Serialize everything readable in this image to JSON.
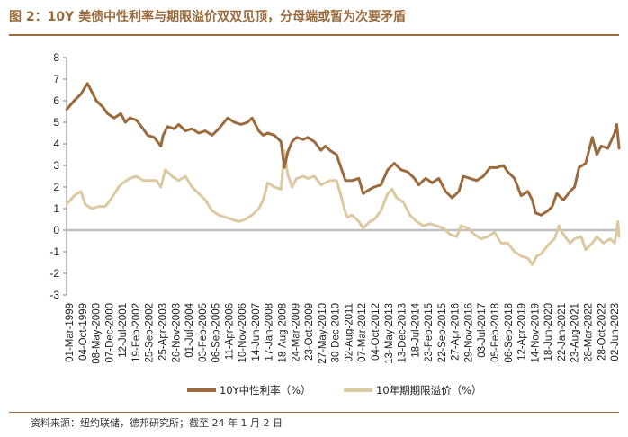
{
  "title": "图 2：10Y 美债中性利率与期限溢价双双见顶，分母端或暂为次要矛盾",
  "source": "资料来源：纽约联储，德邦研究所；截至 24 年 1 月 2 日",
  "colors": {
    "rate": "#9b6b3d",
    "premium": "#dcc9a2",
    "zero": "#bfbfbf"
  },
  "chart_data": {
    "type": "line",
    "title": "10Y 美债中性利率与期限溢价双双见顶，分母端或暂为次要矛盾",
    "ylim": [
      -3,
      8
    ],
    "yticks": [
      "8",
      "7",
      "6",
      "5",
      "4",
      "3",
      "2",
      "1",
      "0",
      "-1",
      "-2",
      "-3"
    ],
    "xlim": [
      1999.16,
      2024.0
    ],
    "xtick_labels": [
      "01-Mar-1999",
      "04-Oct-1999",
      "08-May-2000",
      "07-Dec-2000",
      "12-Jul-2001",
      "19-Feb-2002",
      "25-Sep-2002",
      "25-Apr-2003",
      "26-Nov-2003",
      "01-Jul-2004",
      "03-Feb-2005",
      "06-Sep-2005",
      "11-Apr-2006",
      "10-Nov-2006",
      "14-Jun-2007",
      "17-Jan-2008",
      "18-Aug-2008",
      "24-Mar-2009",
      "23-Oct-2009",
      "27-May-2010",
      "30-Dec-2010",
      "02-Aug-2011",
      "07-Mar-2012",
      "04-Oct-2012",
      "13-May-2013",
      "13-Dec-2013",
      "18-Jul-2014",
      "23-Feb-2015",
      "22-Sep-2015",
      "27-Apr-2016",
      "29-Nov-2016",
      "03-Jul-2017",
      "05-Feb-2018",
      "06-Sep-2018",
      "12-Apr-2019",
      "14-Nov-2019",
      "18-Jun-2020",
      "22-Jan-2021",
      "23-Aug-2021",
      "28-Mar-2022",
      "28-Oct-2022",
      "02-Jun-2023"
    ],
    "legend": [
      "10Y中性利率（%）",
      "10年期期限溢价（%）"
    ],
    "series": [
      {
        "name": "10Y中性利率（%）",
        "x": [
          1999.17,
          1999.5,
          1999.8,
          2000.1,
          2000.3,
          2000.5,
          2000.8,
          2001.0,
          2001.3,
          2001.6,
          2001.8,
          2002.0,
          2002.3,
          2002.6,
          2002.8,
          2003.1,
          2003.4,
          2003.5,
          2003.7,
          2004.0,
          2004.2,
          2004.5,
          2004.8,
          2005.1,
          2005.4,
          2005.7,
          2006.0,
          2006.4,
          2006.7,
          2007.0,
          2007.3,
          2007.5,
          2007.8,
          2008.0,
          2008.2,
          2008.5,
          2008.8,
          2008.95,
          2009.1,
          2009.3,
          2009.5,
          2009.8,
          2010.0,
          2010.3,
          2010.6,
          2010.8,
          2011.0,
          2011.3,
          2011.5,
          2011.7,
          2012.0,
          2012.3,
          2012.5,
          2012.8,
          2013.0,
          2013.3,
          2013.6,
          2013.9,
          2014.2,
          2014.5,
          2014.8,
          2015.0,
          2015.3,
          2015.6,
          2015.9,
          2016.2,
          2016.5,
          2016.8,
          2017.0,
          2017.3,
          2017.6,
          2017.9,
          2018.2,
          2018.5,
          2018.8,
          2019.0,
          2019.3,
          2019.6,
          2019.9,
          2020.1,
          2020.25,
          2020.5,
          2020.8,
          2021.0,
          2021.2,
          2021.5,
          2021.8,
          2022.0,
          2022.2,
          2022.5,
          2022.8,
          2023.0,
          2023.2,
          2023.5,
          2023.8,
          2023.9,
          2024.0
        ],
        "values": [
          5.6,
          6.0,
          6.3,
          6.8,
          6.4,
          6.0,
          5.7,
          5.4,
          5.2,
          5.4,
          5.0,
          5.2,
          5.1,
          4.7,
          4.4,
          4.3,
          3.9,
          4.4,
          4.8,
          4.7,
          4.9,
          4.6,
          4.7,
          4.5,
          4.6,
          4.4,
          4.7,
          5.2,
          5.0,
          4.9,
          5.0,
          5.2,
          4.6,
          4.4,
          4.5,
          4.4,
          4.1,
          2.9,
          3.6,
          4.1,
          4.3,
          4.2,
          4.3,
          4.1,
          3.7,
          3.9,
          3.7,
          3.5,
          2.9,
          2.3,
          2.3,
          2.4,
          1.7,
          1.9,
          2.0,
          2.1,
          2.8,
          3.1,
          2.8,
          2.7,
          2.4,
          2.1,
          2.4,
          2.2,
          2.4,
          1.8,
          1.5,
          1.8,
          2.5,
          2.4,
          2.3,
          2.5,
          2.9,
          2.9,
          3.0,
          2.7,
          2.4,
          1.6,
          1.8,
          1.4,
          0.8,
          0.7,
          0.9,
          1.1,
          1.7,
          1.4,
          1.8,
          2.0,
          2.9,
          3.1,
          4.3,
          3.5,
          3.9,
          3.8,
          4.5,
          4.9,
          3.8
        ]
      },
      {
        "name": "10年期期限溢价（%）",
        "x": [
          1999.17,
          1999.5,
          1999.8,
          2000.0,
          2000.3,
          2000.6,
          2000.9,
          2001.2,
          2001.5,
          2001.7,
          2002.0,
          2002.3,
          2002.6,
          2002.9,
          2003.2,
          2003.4,
          2003.6,
          2003.9,
          2004.2,
          2004.5,
          2004.8,
          2005.1,
          2005.4,
          2005.7,
          2006.0,
          2006.3,
          2006.6,
          2006.9,
          2007.2,
          2007.5,
          2007.8,
          2008.0,
          2008.2,
          2008.5,
          2008.8,
          2008.95,
          2009.1,
          2009.3,
          2009.5,
          2009.8,
          2010.0,
          2010.3,
          2010.6,
          2010.8,
          2011.0,
          2011.3,
          2011.5,
          2011.7,
          2011.8,
          2012.0,
          2012.3,
          2012.5,
          2012.8,
          2013.0,
          2013.3,
          2013.6,
          2013.8,
          2014.0,
          2014.3,
          2014.6,
          2014.9,
          2015.2,
          2015.5,
          2015.8,
          2016.1,
          2016.4,
          2016.7,
          2016.9,
          2017.2,
          2017.5,
          2017.8,
          2018.1,
          2018.4,
          2018.7,
          2019.0,
          2019.3,
          2019.6,
          2019.9,
          2020.1,
          2020.3,
          2020.5,
          2020.8,
          2021.1,
          2021.3,
          2021.5,
          2021.8,
          2022.0,
          2022.3,
          2022.5,
          2022.8,
          2023.0,
          2023.3,
          2023.6,
          2023.8,
          2023.95,
          2024.0
        ],
        "values": [
          1.2,
          1.6,
          1.8,
          1.2,
          1.0,
          1.1,
          1.1,
          1.5,
          2.0,
          2.2,
          2.4,
          2.5,
          2.3,
          2.3,
          2.3,
          2.0,
          2.8,
          2.5,
          2.3,
          2.5,
          2.0,
          1.7,
          1.4,
          0.9,
          0.7,
          0.6,
          0.5,
          0.4,
          0.5,
          0.7,
          1.0,
          1.4,
          2.2,
          2.0,
          1.9,
          3.7,
          2.6,
          2.0,
          2.4,
          2.5,
          2.4,
          2.5,
          2.1,
          2.2,
          2.3,
          2.3,
          1.6,
          0.8,
          0.6,
          0.7,
          0.4,
          0.1,
          0.4,
          0.5,
          0.9,
          1.7,
          1.9,
          1.5,
          1.3,
          0.7,
          0.4,
          0.2,
          0.3,
          0.2,
          0.1,
          -0.2,
          -0.3,
          0.2,
          0.1,
          -0.2,
          -0.4,
          -0.3,
          -0.1,
          -0.6,
          -0.6,
          -1.0,
          -1.2,
          -1.3,
          -1.6,
          -1.2,
          -1.1,
          -0.7,
          -0.4,
          0.2,
          -0.2,
          -0.6,
          -0.4,
          -0.3,
          -0.9,
          -0.6,
          -0.3,
          -0.6,
          -0.4,
          -0.6,
          0.4,
          -0.3
        ]
      }
    ]
  }
}
